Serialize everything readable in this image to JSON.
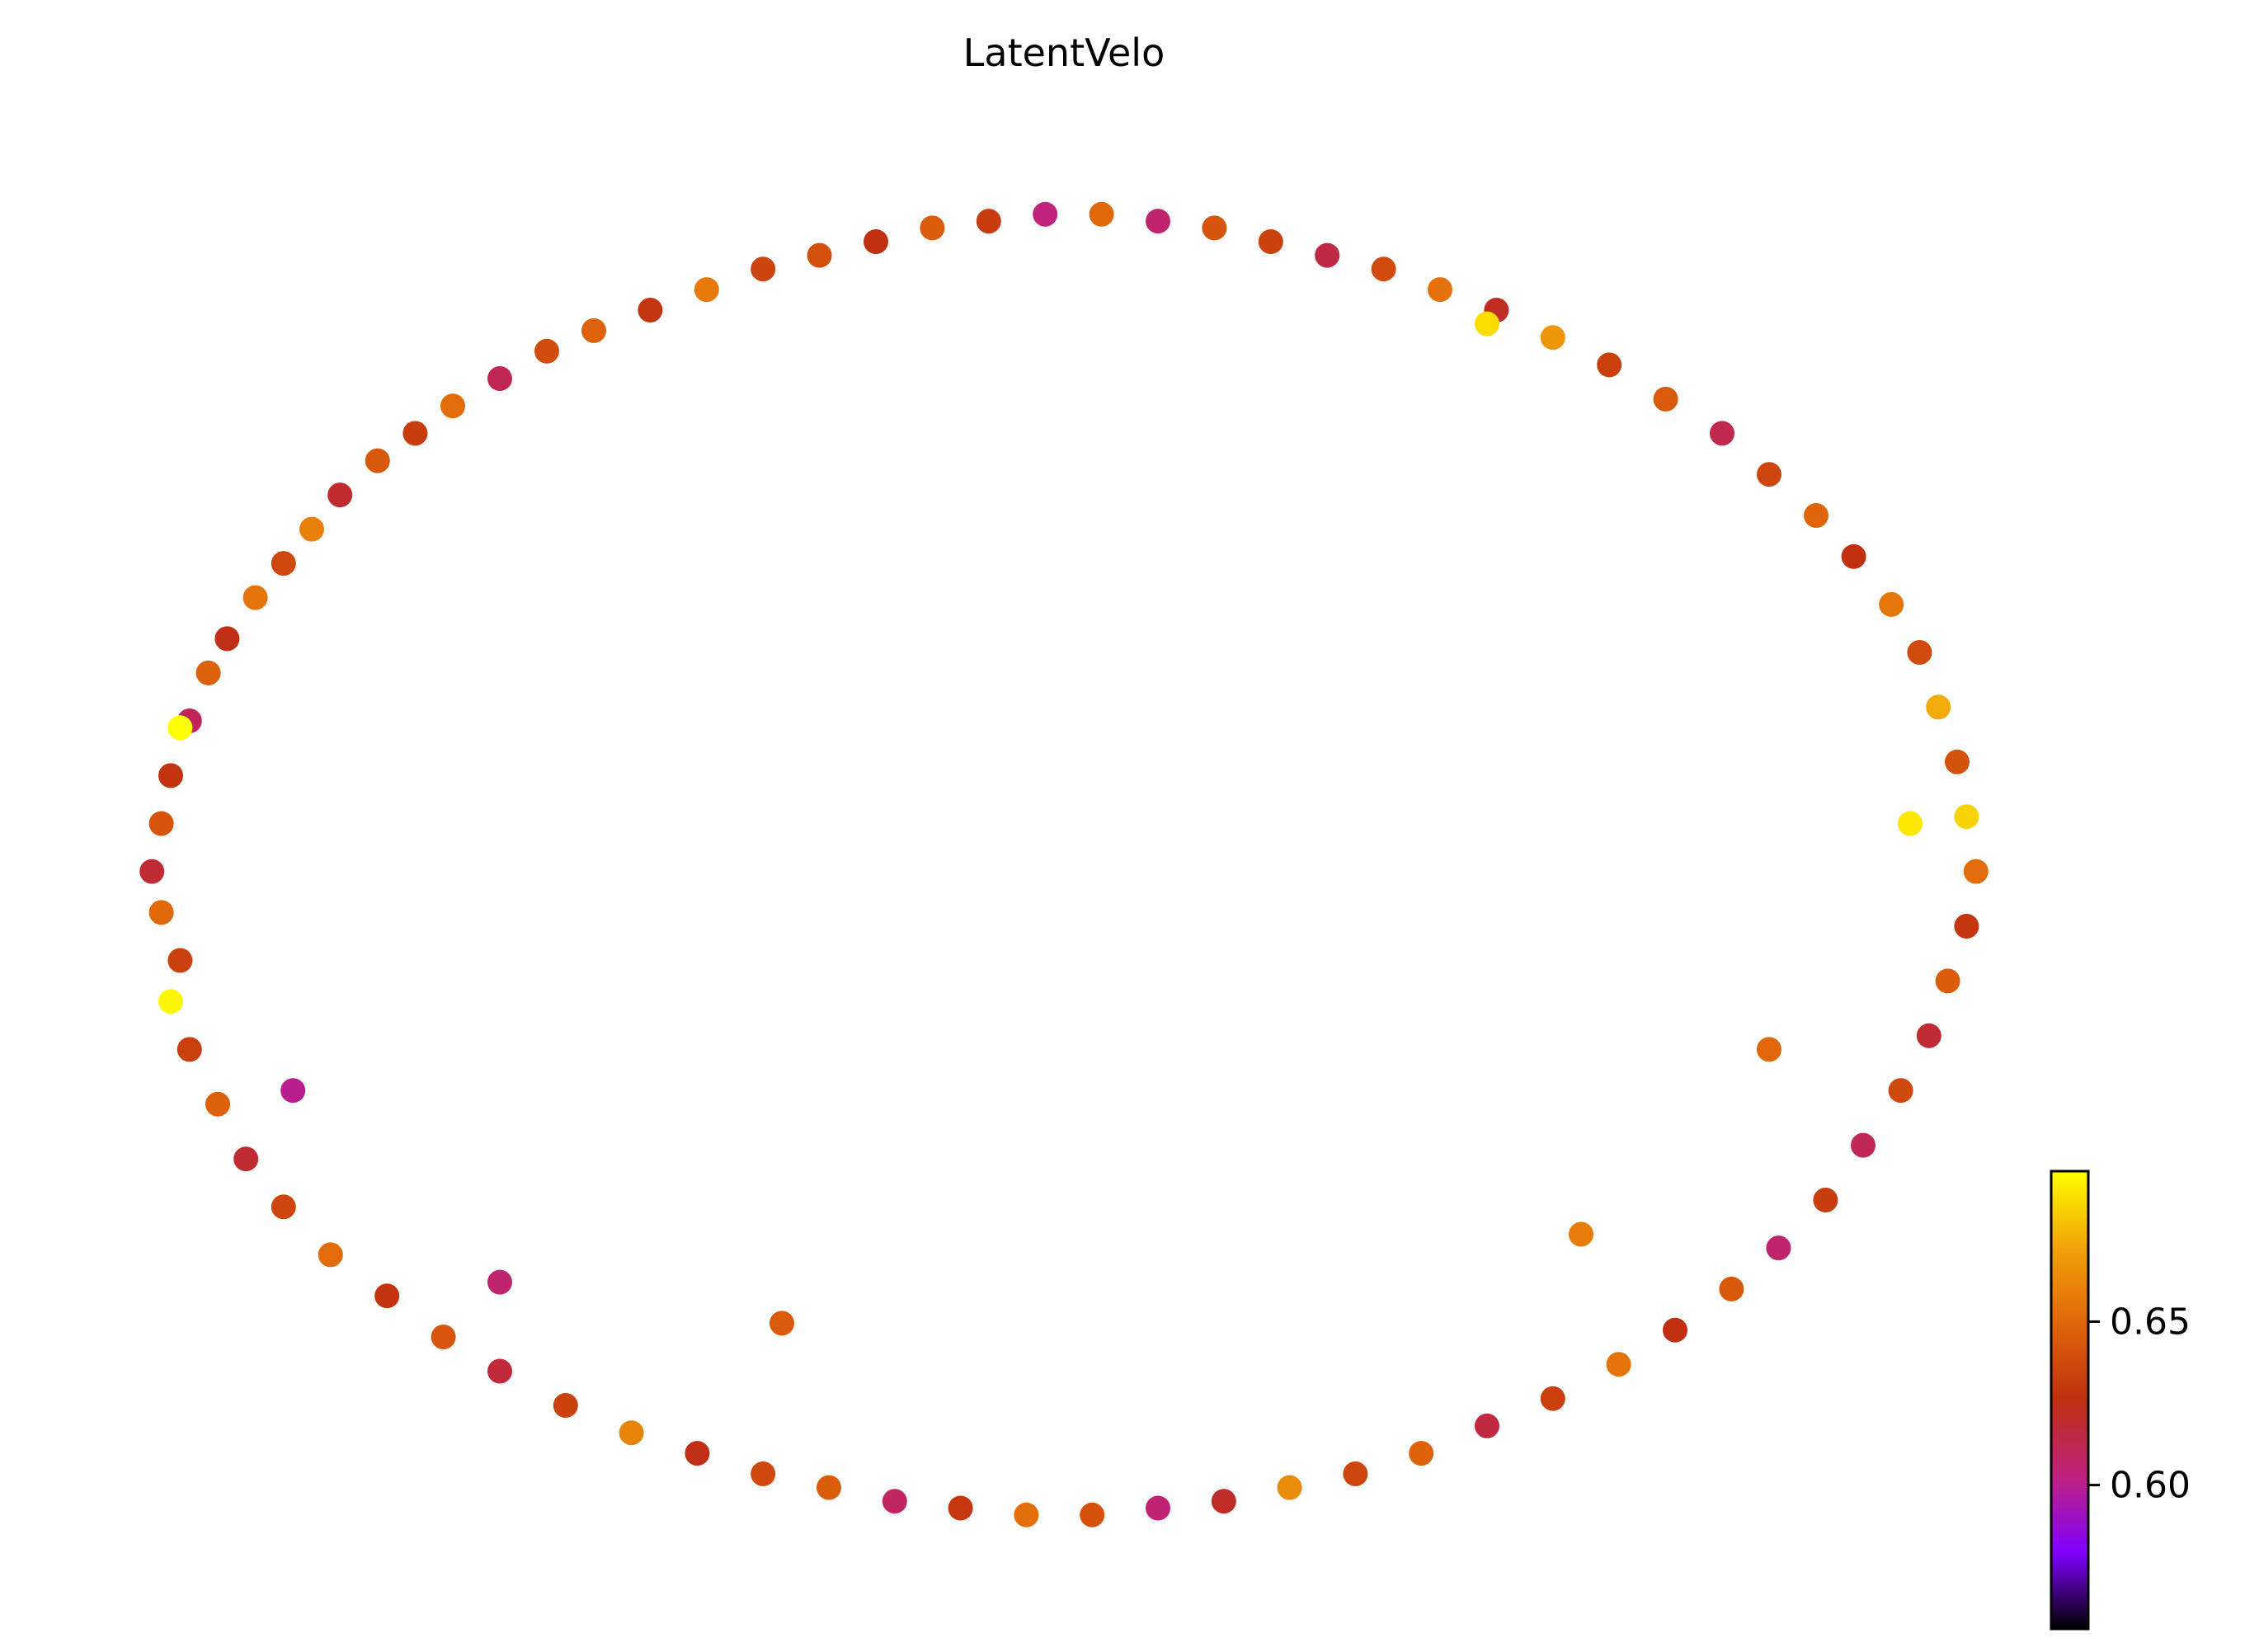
{
  "chart_data": {
    "type": "scatter",
    "title": "LatentVelo",
    "xlabel": "",
    "ylabel": "",
    "axes_visible": false,
    "grid": false,
    "colormap": "gnuplot",
    "colormap_stops": [
      "#000000",
      "#8000ff",
      "#c0227f",
      "#c02f10",
      "#e0650a",
      "#f2a20a",
      "#ffff00"
    ],
    "colorbar": {
      "range": [
        0.556,
        0.696
      ],
      "ticks": [
        0.6,
        0.65
      ],
      "tick_labels": [
        "0.60",
        "0.65"
      ],
      "placement": "lower-right"
    },
    "points": {
      "description_fields": [
        "x",
        "y",
        "value"
      ],
      "x_range": [
        -1.0,
        1.0
      ],
      "y_range": [
        -1.0,
        1.0
      ],
      "data": [
        [
          -0.95,
          0.12,
          0.628
        ],
        [
          -0.96,
          0.05,
          0.642
        ],
        [
          -0.97,
          -0.02,
          0.618
        ],
        [
          -0.96,
          -0.08,
          0.651
        ],
        [
          -0.94,
          -0.15,
          0.633
        ],
        [
          -0.93,
          0.2,
          0.61
        ],
        [
          -0.91,
          0.27,
          0.647
        ],
        [
          -0.89,
          0.32,
          0.625
        ],
        [
          -0.86,
          0.38,
          0.655
        ],
        [
          -0.83,
          0.43,
          0.637
        ],
        [
          -0.8,
          0.48,
          0.66
        ],
        [
          -0.77,
          0.53,
          0.62
        ],
        [
          -0.73,
          0.58,
          0.644
        ],
        [
          -0.69,
          0.62,
          0.632
        ],
        [
          -0.65,
          0.66,
          0.652
        ],
        [
          -0.6,
          0.7,
          0.612
        ],
        [
          -0.55,
          0.74,
          0.639
        ],
        [
          -0.5,
          0.77,
          0.648
        ],
        [
          -0.44,
          0.8,
          0.629
        ],
        [
          -0.38,
          0.83,
          0.657
        ],
        [
          -0.32,
          0.86,
          0.635
        ],
        [
          -0.26,
          0.88,
          0.64
        ],
        [
          -0.2,
          0.9,
          0.626
        ],
        [
          -0.14,
          0.92,
          0.646
        ],
        [
          -0.08,
          0.93,
          0.631
        ],
        [
          -0.02,
          0.94,
          0.603
        ],
        [
          0.04,
          0.94,
          0.651
        ],
        [
          0.1,
          0.93,
          0.606
        ],
        [
          0.16,
          0.92,
          0.642
        ],
        [
          0.22,
          0.9,
          0.634
        ],
        [
          0.28,
          0.88,
          0.615
        ],
        [
          0.34,
          0.86,
          0.638
        ],
        [
          0.4,
          0.83,
          0.654
        ],
        [
          0.46,
          0.8,
          0.622
        ],
        [
          0.52,
          0.76,
          0.668
        ],
        [
          0.58,
          0.72,
          0.633
        ],
        [
          0.64,
          0.67,
          0.645
        ],
        [
          0.7,
          0.62,
          0.613
        ],
        [
          0.75,
          0.56,
          0.636
        ],
        [
          0.8,
          0.5,
          0.649
        ],
        [
          0.84,
          0.44,
          0.627
        ],
        [
          0.88,
          0.37,
          0.656
        ],
        [
          0.91,
          0.3,
          0.638
        ],
        [
          0.93,
          0.22,
          0.675
        ],
        [
          0.95,
          0.14,
          0.641
        ],
        [
          0.96,
          0.06,
          0.685
        ],
        [
          0.97,
          -0.02,
          0.652
        ],
        [
          0.96,
          -0.1,
          0.629
        ],
        [
          0.94,
          -0.18,
          0.646
        ],
        [
          0.92,
          -0.26,
          0.618
        ],
        [
          0.89,
          -0.34,
          0.637
        ],
        [
          0.85,
          -0.42,
          0.611
        ],
        [
          0.81,
          -0.5,
          0.632
        ],
        [
          0.76,
          -0.57,
          0.607
        ],
        [
          0.71,
          -0.63,
          0.644
        ],
        [
          0.65,
          -0.69,
          0.626
        ],
        [
          0.59,
          -0.74,
          0.655
        ],
        [
          0.52,
          -0.79,
          0.633
        ],
        [
          0.45,
          -0.83,
          0.616
        ],
        [
          0.38,
          -0.87,
          0.648
        ],
        [
          0.31,
          -0.9,
          0.636
        ],
        [
          0.24,
          -0.92,
          0.664
        ],
        [
          0.17,
          -0.94,
          0.621
        ],
        [
          0.1,
          -0.95,
          0.605
        ],
        [
          0.03,
          -0.96,
          0.641
        ],
        [
          -0.04,
          -0.96,
          0.653
        ],
        [
          -0.11,
          -0.95,
          0.63
        ],
        [
          -0.18,
          -0.94,
          0.609
        ],
        [
          -0.25,
          -0.92,
          0.646
        ],
        [
          -0.32,
          -0.9,
          0.637
        ],
        [
          -0.39,
          -0.87,
          0.625
        ],
        [
          -0.46,
          -0.84,
          0.661
        ],
        [
          -0.53,
          -0.8,
          0.634
        ],
        [
          -0.6,
          -0.75,
          0.617
        ],
        [
          -0.66,
          -0.7,
          0.643
        ],
        [
          -0.72,
          -0.64,
          0.628
        ],
        [
          -0.78,
          -0.58,
          0.652
        ],
        [
          -0.83,
          -0.51,
          0.636
        ],
        [
          -0.87,
          -0.44,
          0.619
        ],
        [
          -0.9,
          -0.36,
          0.647
        ],
        [
          -0.93,
          -0.28,
          0.633
        ],
        [
          -0.95,
          -0.21,
          0.694
        ],
        [
          -0.94,
          0.19,
          0.696
        ],
        [
          0.9,
          0.05,
          0.69
        ],
        [
          0.45,
          0.78,
          0.687
        ],
        [
          -0.6,
          -0.62,
          0.606
        ],
        [
          -0.3,
          -0.68,
          0.645
        ],
        [
          0.55,
          -0.55,
          0.658
        ],
        [
          0.75,
          -0.28,
          0.65
        ],
        [
          -0.82,
          -0.34,
          0.6
        ]
      ]
    }
  }
}
